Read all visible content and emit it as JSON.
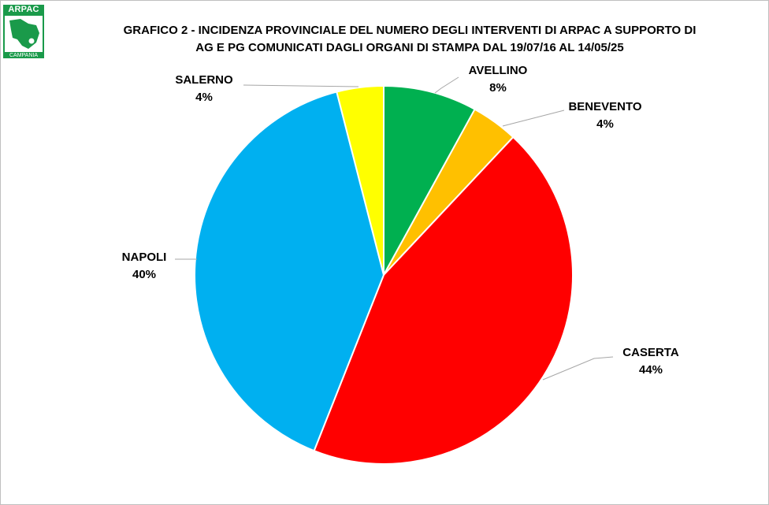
{
  "logo": {
    "top_text": "ARPAC",
    "bottom_text": "CAMPANIA"
  },
  "chart_data": {
    "type": "pie",
    "title_lines": [
      "GRAFICO 2 - INCIDENZA PROVINCIALE DEL NUMERO DEGLI INTERVENTI DI ARPAC A SUPPORTO DI",
      "AG E PG COMUNICATI DAGLI ORGANI DI STAMPA DAL 19/07/16 AL 14/05/25"
    ],
    "slices": [
      {
        "label": "AVELLINO",
        "value": 8,
        "display": "8%",
        "color": "#00b050"
      },
      {
        "label": "BENEVENTO",
        "value": 4,
        "display": "4%",
        "color": "#ffc000"
      },
      {
        "label": "CASERTA",
        "value": 44,
        "display": "44%",
        "color": "#ff0000"
      },
      {
        "label": "NAPOLI",
        "value": 40,
        "display": "40%",
        "color": "#00b0f0"
      },
      {
        "label": "SALERNO",
        "value": 4,
        "display": "4%",
        "color": "#ffff00"
      }
    ]
  }
}
